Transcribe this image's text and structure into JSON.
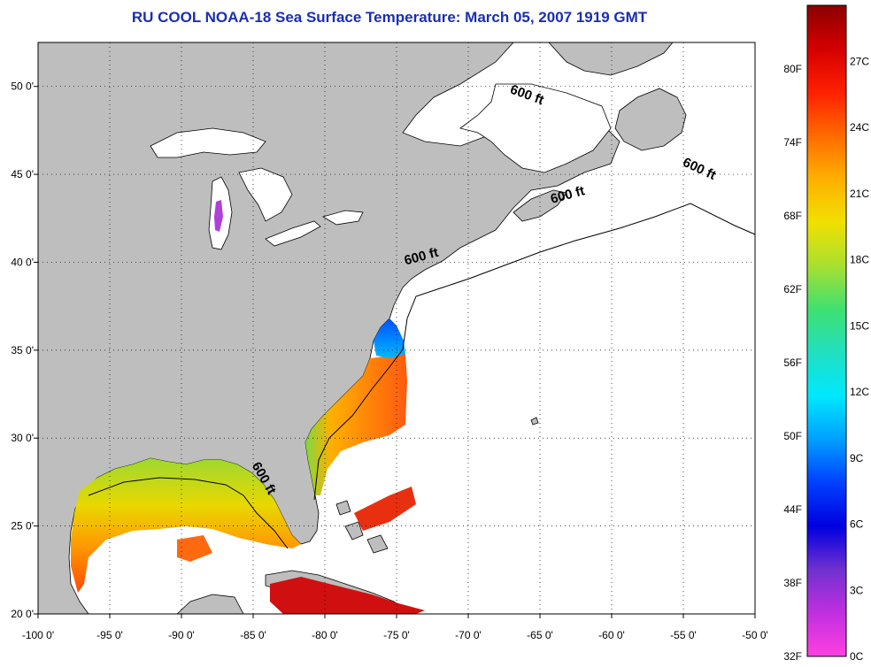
{
  "title": "RU COOL  NOAA-18  Sea Surface Temperature:  March 05, 2007 1919 GMT",
  "map": {
    "lon_range": [
      -100,
      -50
    ],
    "lat_range": [
      20,
      52.5
    ],
    "lon_ticks": [
      {
        "value": -100,
        "label": "-100 0'"
      },
      {
        "value": -95,
        "label": "-95 0'"
      },
      {
        "value": -90,
        "label": "-90 0'"
      },
      {
        "value": -85,
        "label": "-85 0'"
      },
      {
        "value": -80,
        "label": "-80 0'"
      },
      {
        "value": -75,
        "label": "-75 0'"
      },
      {
        "value": -70,
        "label": "-70 0'"
      },
      {
        "value": -65,
        "label": "-65 0'"
      },
      {
        "value": -60,
        "label": "-60 0'"
      },
      {
        "value": -55,
        "label": "-55 0'"
      },
      {
        "value": -50,
        "label": "-50 0'"
      }
    ],
    "lat_ticks": [
      {
        "value": 20,
        "label": "20 0'"
      },
      {
        "value": 25,
        "label": "25 0'"
      },
      {
        "value": 30,
        "label": "30 0'"
      },
      {
        "value": 35,
        "label": "35 0'"
      },
      {
        "value": 40,
        "label": "40 0'"
      },
      {
        "value": 45,
        "label": "45 0'"
      },
      {
        "value": 50,
        "label": "50 0'"
      }
    ],
    "land_color": "#bebebe",
    "no_data_color": "#ffffff",
    "contour_labels": [
      {
        "text": "600 ft",
        "lon": -66,
        "lat": 49.3,
        "rotate": 20
      },
      {
        "text": "600 ft",
        "lon": -54,
        "lat": 45.1,
        "rotate": 25
      },
      {
        "text": "600 ft",
        "lon": -63,
        "lat": 43.6,
        "rotate": -15
      },
      {
        "text": "600 ft",
        "lon": -73.2,
        "lat": 40.1,
        "rotate": -15
      },
      {
        "text": "600 ft",
        "lon": -84.5,
        "lat": 27.6,
        "rotate": 60
      }
    ]
  },
  "colorbar": {
    "fahrenheit_labels": [
      "80F",
      "74F",
      "68F",
      "62F",
      "56F",
      "50F",
      "44F",
      "38F",
      "32F"
    ],
    "celsius_labels": [
      "27C",
      "24C",
      "21C",
      "18C",
      "15C",
      "12C",
      "9C",
      "6C",
      "3C",
      "0C"
    ],
    "gradient": [
      "#8b0000",
      "#d40000",
      "#ff2000",
      "#ff6a00",
      "#ffb000",
      "#f0e000",
      "#a8e030",
      "#40e070",
      "#20e0c0",
      "#00e8ff",
      "#00a0ff",
      "#0040ff",
      "#0000e0",
      "#7030d0",
      "#c030e0",
      "#ff40e0"
    ]
  }
}
